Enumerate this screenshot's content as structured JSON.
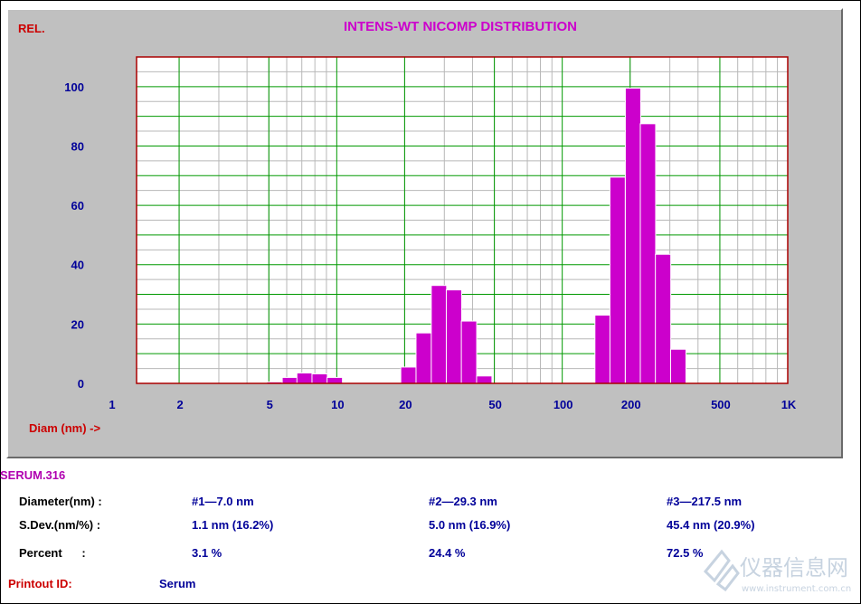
{
  "colors": {
    "bar": "#cc00cc",
    "bar_outline": "#ffffff",
    "plot_bg": "#ffffff",
    "panel_bg": "#c0c0c0",
    "grid_major": "#009900",
    "grid_minor": "#b8b8b8",
    "title": "#cc00cc",
    "label_red": "#cc0000",
    "label_blue": "#000099",
    "plot_border": "#aa0000"
  },
  "chart_data": {
    "type": "bar",
    "title": "INTENS-WT NICOMP DISTRIBUTION",
    "ylabel": "REL.",
    "xlabel": "Diam (nm) ->",
    "x_scale": "log",
    "xlim": [
      1,
      1000
    ],
    "ylim": [
      0,
      110
    ],
    "grid": true,
    "xticks": [
      {
        "value": 1,
        "label": "1"
      },
      {
        "value": 2,
        "label": "2"
      },
      {
        "value": 5,
        "label": "5"
      },
      {
        "value": 10,
        "label": "10"
      },
      {
        "value": 20,
        "label": "20"
      },
      {
        "value": 50,
        "label": "50"
      },
      {
        "value": 100,
        "label": "100"
      },
      {
        "value": 200,
        "label": "200"
      },
      {
        "value": 500,
        "label": "500"
      },
      {
        "value": 1000,
        "label": "1K"
      }
    ],
    "yticks": [
      {
        "value": 0,
        "label": "0"
      },
      {
        "value": 20,
        "label": "20"
      },
      {
        "value": 40,
        "label": "40"
      },
      {
        "value": 60,
        "label": "60"
      },
      {
        "value": 80,
        "label": "80"
      },
      {
        "value": 100,
        "label": "100"
      }
    ],
    "bars": [
      {
        "x": 5.3,
        "y": 0.5
      },
      {
        "x": 6.2,
        "y": 2
      },
      {
        "x": 7.2,
        "y": 3.5
      },
      {
        "x": 8.4,
        "y": 3.2
      },
      {
        "x": 9.8,
        "y": 2
      },
      {
        "x": 20.8,
        "y": 5.5
      },
      {
        "x": 24.3,
        "y": 17
      },
      {
        "x": 28.4,
        "y": 33
      },
      {
        "x": 33.1,
        "y": 31.5
      },
      {
        "x": 38.6,
        "y": 21
      },
      {
        "x": 45.1,
        "y": 2.5
      },
      {
        "x": 151,
        "y": 23
      },
      {
        "x": 176,
        "y": 69.5
      },
      {
        "x": 206,
        "y": 99.5
      },
      {
        "x": 240,
        "y": 87.5
      },
      {
        "x": 280,
        "y": 43.5
      },
      {
        "x": 327,
        "y": 11.5
      }
    ]
  },
  "summary": {
    "sample_name": "SERUM.316",
    "rows": [
      {
        "label": "Diameter(nm) :",
        "values": [
          "#1—7.0 nm",
          "#2—29.3 nm",
          "#3—217.5 nm"
        ]
      },
      {
        "label": "S.Dev.(nm/%) :",
        "values": [
          "1.1 nm (16.2%)",
          "5.0 nm (16.9%)",
          "45.4 nm (20.9%)"
        ]
      },
      {
        "label": "Percent      :",
        "values": [
          "3.1 %",
          "24.4 %",
          "72.5 %"
        ]
      }
    ],
    "printout_label": "Printout ID:",
    "printout_value": "Serum"
  },
  "watermark": {
    "text": "仪器信息网",
    "url": "www.instrument.com.cn"
  }
}
